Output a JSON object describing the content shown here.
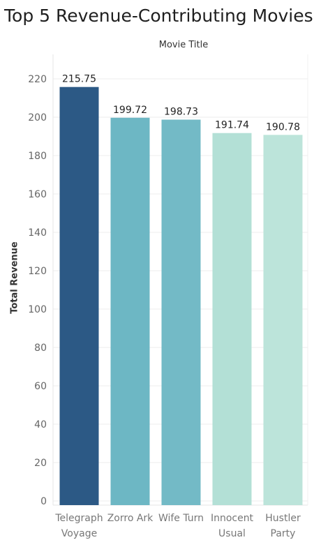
{
  "chart_data": {
    "type": "bar",
    "title": "Top 5 Revenue-Contributing Movies",
    "column_header": "Movie Title",
    "ylabel": "Total Revenue",
    "xlabel": "",
    "categories": [
      [
        "Telegraph",
        "Voyage"
      ],
      [
        "Zorro Ark"
      ],
      [
        "Wife Turn"
      ],
      [
        "Innocent",
        "Usual"
      ],
      [
        "Hustler",
        "Party"
      ]
    ],
    "values": [
      215.75,
      199.72,
      198.73,
      191.74,
      190.78
    ],
    "value_labels": [
      "215.75",
      "199.72",
      "198.73",
      "191.74",
      "190.78"
    ],
    "bar_colors": [
      "#2c5985",
      "#6db7c4",
      "#73bac6",
      "#b3e0d6",
      "#bce4da"
    ],
    "ylim": [
      0,
      230
    ],
    "yticks": [
      0,
      20,
      40,
      60,
      80,
      100,
      120,
      140,
      160,
      180,
      200,
      220
    ],
    "grid": true,
    "legend": "none"
  }
}
